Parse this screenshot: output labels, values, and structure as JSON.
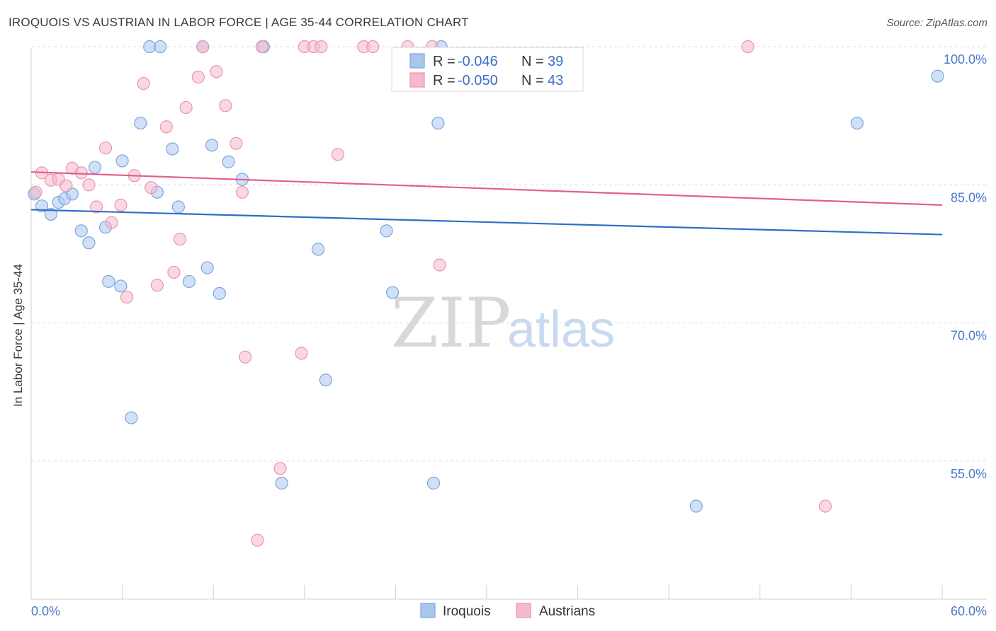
{
  "header": {
    "title": "IROQUOIS VS AUSTRIAN IN LABOR FORCE | AGE 35-44 CORRELATION CHART",
    "source": "Source: ZipAtlas.com"
  },
  "watermark": {
    "zip": "ZIP",
    "atlas": "atlas"
  },
  "stats": [
    {
      "r_label": "R =",
      "r_value": "-0.046",
      "n_label": "N =",
      "n_value": "39",
      "color": "#a9c6ee"
    },
    {
      "r_label": "R =",
      "r_value": "-0.050",
      "n_label": "N =",
      "n_value": "43",
      "color": "#f6b8cc"
    }
  ],
  "chart_data": {
    "type": "scatter",
    "title": "IROQUOIS VS AUSTRIAN IN LABOR FORCE | AGE 35-44 CORRELATION CHART",
    "xlabel": "",
    "ylabel": "In Labor Force | Age 35-44",
    "xlim": [
      0,
      60
    ],
    "ylim": [
      40,
      102
    ],
    "x_tick_labels": [
      "0.0%",
      "60.0%"
    ],
    "y_ticks": [
      55,
      70,
      85,
      100
    ],
    "y_tick_labels": [
      "55.0%",
      "70.0%",
      "85.0%",
      "100.0%"
    ],
    "legend": [
      "Iroquois",
      "Austrians"
    ],
    "series": [
      {
        "name": "Iroquois",
        "color": "#a9c6ee",
        "stroke": "#7da6dd",
        "line_color": "#2f6ec6",
        "trend": [
          [
            0,
            82.3
          ],
          [
            60,
            79.6
          ]
        ],
        "points": [
          [
            0.2,
            84.0
          ],
          [
            0.7,
            82.7
          ],
          [
            1.3,
            81.8
          ],
          [
            1.8,
            83.1
          ],
          [
            2.2,
            83.5
          ],
          [
            2.7,
            84.0
          ],
          [
            3.3,
            80.0
          ],
          [
            3.8,
            78.7
          ],
          [
            4.2,
            86.9
          ],
          [
            4.9,
            80.4
          ],
          [
            5.1,
            74.5
          ],
          [
            5.9,
            74.0
          ],
          [
            6.0,
            87.6
          ],
          [
            6.6,
            59.7
          ],
          [
            7.2,
            91.7
          ],
          [
            7.8,
            100.0
          ],
          [
            8.3,
            84.2
          ],
          [
            8.5,
            100.0
          ],
          [
            9.3,
            88.9
          ],
          [
            9.7,
            82.6
          ],
          [
            10.4,
            74.5
          ],
          [
            11.3,
            100.0
          ],
          [
            11.6,
            76.0
          ],
          [
            11.9,
            89.3
          ],
          [
            12.4,
            73.2
          ],
          [
            13.0,
            87.5
          ],
          [
            13.9,
            85.6
          ],
          [
            15.3,
            100.0
          ],
          [
            16.5,
            52.6
          ],
          [
            18.9,
            78.0
          ],
          [
            19.4,
            63.8
          ],
          [
            23.4,
            80.0
          ],
          [
            23.8,
            73.3
          ],
          [
            26.5,
            52.6
          ],
          [
            26.8,
            91.7
          ],
          [
            27.0,
            100.0
          ],
          [
            43.8,
            50.1
          ],
          [
            54.4,
            91.7
          ],
          [
            59.7,
            96.8
          ]
        ]
      },
      {
        "name": "Austrians",
        "color": "#f6b8cc",
        "stroke": "#ee93af",
        "line_color": "#e2608c",
        "trend": [
          [
            0,
            86.4
          ],
          [
            60,
            82.8
          ]
        ],
        "points": [
          [
            0.3,
            84.2
          ],
          [
            0.7,
            86.3
          ],
          [
            1.3,
            85.5
          ],
          [
            1.8,
            85.6
          ],
          [
            2.3,
            84.9
          ],
          [
            2.7,
            86.8
          ],
          [
            3.3,
            86.3
          ],
          [
            3.8,
            85.0
          ],
          [
            4.3,
            82.6
          ],
          [
            4.9,
            89.0
          ],
          [
            5.3,
            80.9
          ],
          [
            5.9,
            82.8
          ],
          [
            6.3,
            72.8
          ],
          [
            6.8,
            86.0
          ],
          [
            7.4,
            96.0
          ],
          [
            7.9,
            84.7
          ],
          [
            8.3,
            74.1
          ],
          [
            8.9,
            91.3
          ],
          [
            9.4,
            75.5
          ],
          [
            9.8,
            79.1
          ],
          [
            10.2,
            93.4
          ],
          [
            11.0,
            96.7
          ],
          [
            11.3,
            100.0
          ],
          [
            12.2,
            97.3
          ],
          [
            12.8,
            93.6
          ],
          [
            13.5,
            89.5
          ],
          [
            13.9,
            84.2
          ],
          [
            14.1,
            66.3
          ],
          [
            14.9,
            46.4
          ],
          [
            15.2,
            100.0
          ],
          [
            16.4,
            54.2
          ],
          [
            17.8,
            66.7
          ],
          [
            18.0,
            100.0
          ],
          [
            18.6,
            100.0
          ],
          [
            19.1,
            100.0
          ],
          [
            20.2,
            88.3
          ],
          [
            21.9,
            100.0
          ],
          [
            22.5,
            100.0
          ],
          [
            24.8,
            100.0
          ],
          [
            26.4,
            100.0
          ],
          [
            26.9,
            76.3
          ],
          [
            47.2,
            100.0
          ],
          [
            52.3,
            50.1
          ]
        ]
      }
    ]
  }
}
